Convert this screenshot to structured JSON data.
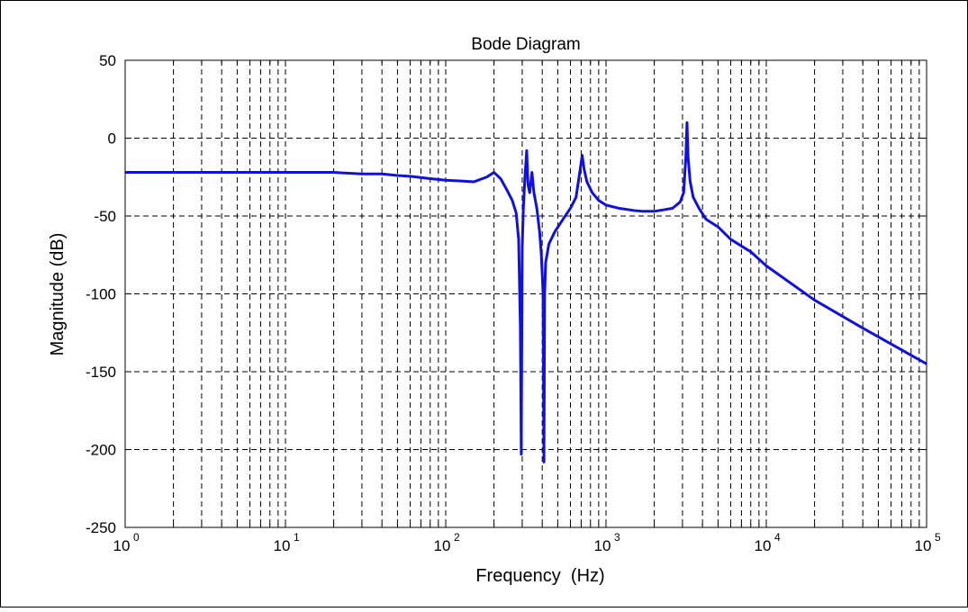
{
  "chart_data": {
    "type": "line",
    "title": "Bode Diagram",
    "xlabel": "Frequency  (Hz)",
    "ylabel": "Magnitude (dB)",
    "xscale": "log",
    "xlim": [
      1,
      100000
    ],
    "ylim": [
      -250,
      50
    ],
    "yticks": [
      -250,
      -200,
      -150,
      -100,
      -50,
      0,
      50
    ],
    "xtick_decades": [
      {
        "base": "10",
        "exp": "0",
        "value": 1
      },
      {
        "base": "10",
        "exp": "1",
        "value": 10
      },
      {
        "base": "10",
        "exp": "2",
        "value": 100
      },
      {
        "base": "10",
        "exp": "3",
        "value": 1000
      },
      {
        "base": "10",
        "exp": "4",
        "value": 10000
      },
      {
        "base": "10",
        "exp": "5",
        "value": 100000
      }
    ],
    "grid": true,
    "line_color": "#1010e0",
    "series": [
      {
        "points": [
          [
            1,
            -22
          ],
          [
            20,
            -22
          ],
          [
            30,
            -23
          ],
          [
            40,
            -23
          ],
          [
            50,
            -24
          ],
          [
            60,
            -24.5
          ],
          [
            80,
            -26
          ],
          [
            100,
            -27
          ],
          [
            150,
            -28
          ],
          [
            180,
            -25
          ],
          [
            200,
            -22
          ],
          [
            220,
            -26
          ],
          [
            240,
            -33
          ],
          [
            260,
            -40
          ],
          [
            275,
            -48
          ],
          [
            285,
            -65
          ],
          [
            292,
            -120
          ],
          [
            296,
            -203
          ],
          [
            300,
            -70
          ],
          [
            305,
            -45
          ],
          [
            312,
            -25
          ],
          [
            320,
            -8
          ],
          [
            326,
            -30
          ],
          [
            334,
            -35
          ],
          [
            345,
            -22
          ],
          [
            355,
            -35
          ],
          [
            370,
            -45
          ],
          [
            385,
            -60
          ],
          [
            395,
            -75
          ],
          [
            405,
            -100
          ],
          [
            410,
            -208
          ],
          [
            414,
            -100
          ],
          [
            420,
            -80
          ],
          [
            440,
            -68
          ],
          [
            480,
            -60
          ],
          [
            540,
            -52
          ],
          [
            600,
            -45
          ],
          [
            650,
            -38
          ],
          [
            690,
            -20
          ],
          [
            710,
            -11
          ],
          [
            730,
            -20
          ],
          [
            760,
            -28
          ],
          [
            820,
            -35
          ],
          [
            900,
            -40
          ],
          [
            1000,
            -43
          ],
          [
            1200,
            -45
          ],
          [
            1500,
            -46.5
          ],
          [
            1700,
            -47
          ],
          [
            2000,
            -47
          ],
          [
            2300,
            -46
          ],
          [
            2600,
            -45
          ],
          [
            2900,
            -41
          ],
          [
            3050,
            -35
          ],
          [
            3150,
            -12
          ],
          [
            3200,
            10
          ],
          [
            3250,
            -12
          ],
          [
            3350,
            -28
          ],
          [
            3500,
            -38
          ],
          [
            3800,
            -45
          ],
          [
            4200,
            -52
          ],
          [
            5000,
            -57
          ],
          [
            6000,
            -65
          ],
          [
            8000,
            -73
          ],
          [
            10000,
            -82
          ],
          [
            20000,
            -104
          ],
          [
            40000,
            -122
          ],
          [
            100000,
            -145
          ]
        ]
      }
    ]
  }
}
